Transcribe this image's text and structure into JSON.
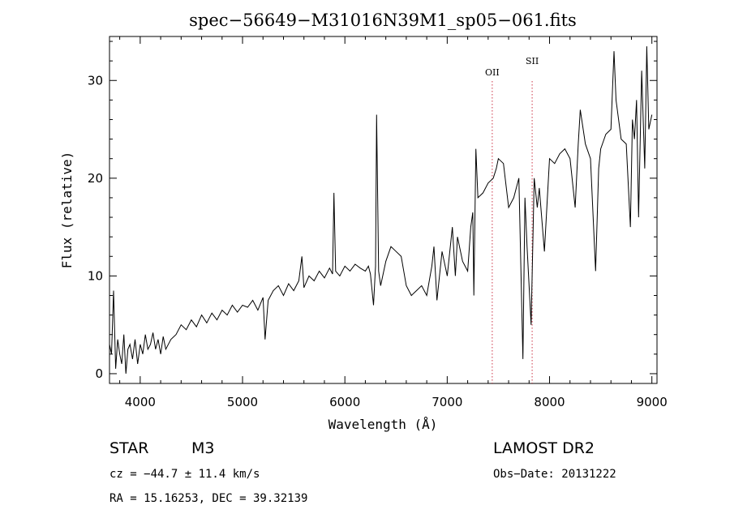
{
  "chart_data": {
    "type": "line",
    "title": "spec−56649−M31016N39M1_sp05−061.fits",
    "xlabel": "Wavelength (Å)",
    "ylabel": "Flux (relative)",
    "xlim": [
      3700,
      9050
    ],
    "ylim": [
      -1,
      34.5
    ],
    "xticks": [
      4000,
      5000,
      6000,
      7000,
      8000,
      9000
    ],
    "yticks": [
      0,
      10,
      20,
      30
    ],
    "grid": false,
    "series": [
      {
        "x": [
          3700,
          3720,
          3740,
          3760,
          3780,
          3800,
          3820,
          3840,
          3860,
          3880,
          3900,
          3925,
          3950,
          3975,
          4000,
          4025,
          4050,
          4075,
          4100,
          4125,
          4150,
          4175,
          4200,
          4225,
          4250,
          4275,
          4300,
          4350,
          4400,
          4450,
          4500,
          4550,
          4600,
          4650,
          4700,
          4750,
          4800,
          4850,
          4900,
          4950,
          5000,
          5050,
          5100,
          5150,
          5200,
          5220,
          5250,
          5300,
          5350,
          5400,
          5450,
          5500,
          5550,
          5580,
          5600,
          5650,
          5700,
          5750,
          5800,
          5850,
          5880,
          5893,
          5910,
          5950,
          6000,
          6050,
          6100,
          6150,
          6200,
          6230,
          6250,
          6280,
          6300,
          6310,
          6330,
          6350,
          6400,
          6450,
          6500,
          6550,
          6600,
          6650,
          6700,
          6750,
          6800,
          6850,
          6870,
          6900,
          6950,
          7000,
          7050,
          7080,
          7100,
          7150,
          7200,
          7230,
          7250,
          7260,
          7280,
          7300,
          7350,
          7400,
          7450,
          7480,
          7500,
          7550,
          7600,
          7650,
          7700,
          7740,
          7760,
          7780,
          7820,
          7850,
          7880,
          7900,
          7950,
          8000,
          8050,
          8100,
          8150,
          8200,
          8250,
          8280,
          8300,
          8350,
          8400,
          8450,
          8480,
          8500,
          8550,
          8600,
          8630,
          8650,
          8700,
          8750,
          8790,
          8810,
          8830,
          8850,
          8870,
          8900,
          8930,
          8950,
          8970,
          9000
        ],
        "y": [
          3.0,
          2.0,
          8.5,
          0.5,
          3.5,
          2.0,
          1.0,
          4.0,
          0.0,
          2.5,
          3.0,
          1.5,
          3.5,
          1.0,
          3.0,
          2.0,
          4.0,
          2.5,
          3.0,
          4.2,
          2.5,
          3.5,
          2.0,
          3.8,
          2.5,
          3.0,
          3.5,
          4.0,
          5.0,
          4.5,
          5.5,
          4.8,
          6.0,
          5.2,
          6.2,
          5.5,
          6.5,
          6.0,
          7.0,
          6.3,
          7.0,
          6.8,
          7.5,
          6.5,
          7.8,
          3.5,
          7.5,
          8.5,
          9.0,
          8.0,
          9.2,
          8.5,
          9.5,
          12.0,
          8.8,
          10.0,
          9.5,
          10.5,
          9.8,
          10.8,
          10.2,
          18.5,
          10.5,
          10.0,
          11.0,
          10.5,
          11.2,
          10.8,
          10.5,
          11.0,
          10.2,
          7.0,
          11.0,
          26.5,
          10.5,
          9.0,
          11.5,
          13.0,
          12.5,
          12.0,
          9.0,
          8.0,
          8.5,
          9.0,
          8.0,
          11.0,
          13.0,
          7.5,
          12.5,
          10.0,
          15.0,
          10.0,
          14.0,
          11.5,
          10.5,
          15.0,
          16.5,
          8.0,
          23.0,
          18.0,
          18.5,
          19.5,
          20.0,
          21.0,
          22.0,
          21.5,
          17.0,
          18.0,
          20.0,
          1.5,
          18.0,
          13.0,
          5.0,
          20.0,
          17.0,
          19.0,
          12.5,
          22.0,
          21.5,
          22.5,
          23.0,
          22.0,
          17.0,
          23.5,
          27.0,
          23.5,
          22.0,
          10.5,
          21.0,
          23.0,
          24.5,
          25.0,
          33.0,
          28.0,
          24.0,
          23.5,
          15.0,
          26.0,
          24.0,
          28.0,
          16.0,
          31.0,
          21.0,
          33.5,
          25.0,
          26.5
        ]
      }
    ],
    "lines": [
      {
        "label": "OII",
        "x": 7440
      },
      {
        "label": "SII",
        "x": 7830
      }
    ]
  },
  "info": {
    "object_class": "STAR",
    "subclass": "M3",
    "survey": "LAMOST DR2",
    "cz": "cz = −44.7 ± 11.4 km/s",
    "obs_date": "Obs−Date: 20131222",
    "coords": "RA =  15.16253, DEC =  39.32139"
  },
  "colors": {
    "spectrum": "#000000",
    "marker_line": "#cc3344"
  }
}
